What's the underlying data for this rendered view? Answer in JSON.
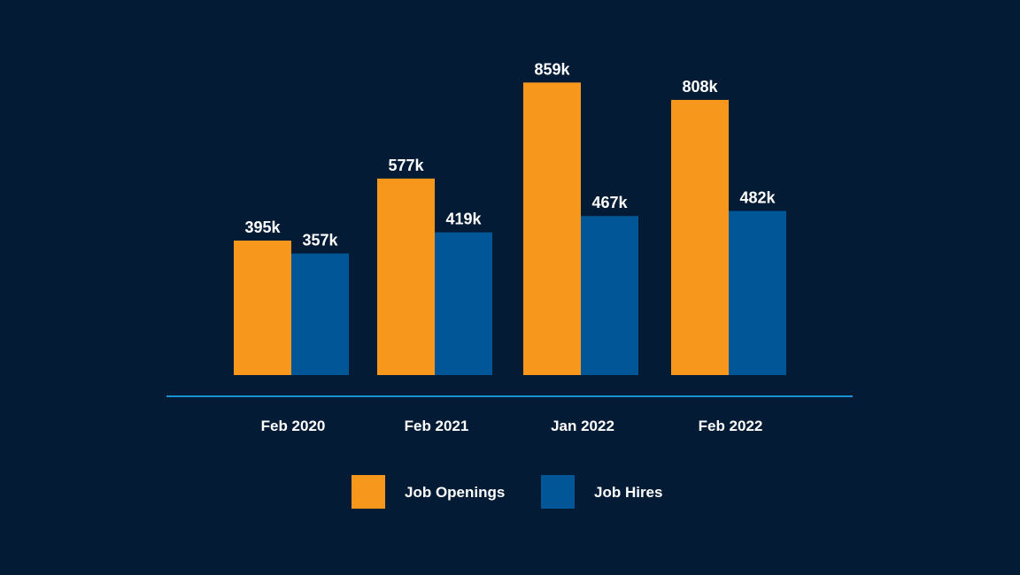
{
  "chart_data": {
    "type": "bar",
    "title": "",
    "xlabel": "",
    "ylabel": "",
    "categories": [
      "Feb 2020",
      "Feb 2021",
      "Jan 2022",
      "Feb 2022"
    ],
    "series": [
      {
        "name": "Job Openings",
        "color": "#f7981d",
        "values": [
          395,
          577,
          859,
          808
        ],
        "labels": [
          "395k",
          "577k",
          "859k",
          "808k"
        ]
      },
      {
        "name": "Job Hires",
        "color": "#005697",
        "values": [
          357,
          419,
          467,
          482
        ],
        "labels": [
          "357k",
          "419k",
          "467k",
          "482k"
        ]
      }
    ],
    "ylim": [
      0,
      900
    ],
    "unit": "k",
    "grid": false,
    "legend": "bottom-center",
    "axis_color": "#1b8fd1"
  }
}
